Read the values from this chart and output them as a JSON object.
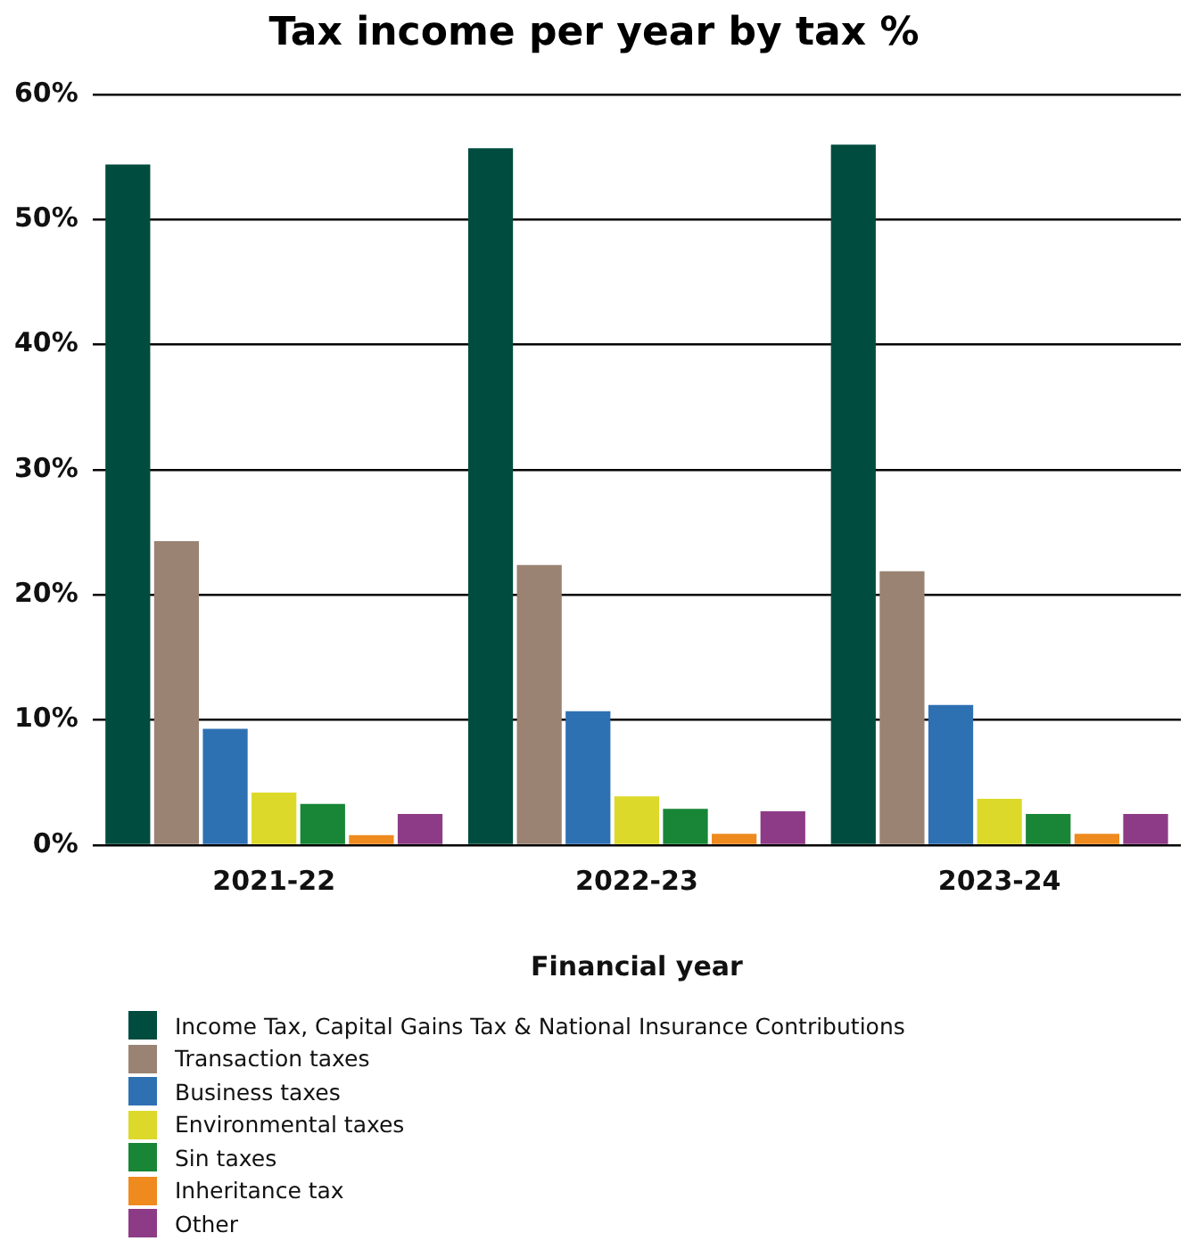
{
  "chart_data": {
    "type": "bar",
    "title": "Tax income per year by tax %",
    "xlabel": "Financial year",
    "categories": [
      "2021-22",
      "2022-23",
      "2023-24"
    ],
    "series": [
      {
        "name": "Income Tax, Capital Gains Tax & National Insurance Contributions",
        "color": "#004c3f",
        "values": [
          54.4,
          55.7,
          56.0
        ]
      },
      {
        "name": "Transaction taxes",
        "color": "#9a8373",
        "values": [
          24.3,
          22.4,
          21.9
        ]
      },
      {
        "name": "Business taxes",
        "color": "#2e71b3",
        "values": [
          9.3,
          10.7,
          11.2
        ]
      },
      {
        "name": "Environmental taxes",
        "color": "#dcd92a",
        "values": [
          4.2,
          3.9,
          3.7
        ]
      },
      {
        "name": "Sin taxes",
        "color": "#188636",
        "values": [
          3.3,
          2.9,
          2.5
        ]
      },
      {
        "name": "Inheritance tax",
        "color": "#ef8a1e",
        "values": [
          0.8,
          0.9,
          0.9
        ]
      },
      {
        "name": "Other",
        "color": "#8d3b87",
        "values": [
          2.5,
          2.7,
          2.5
        ]
      }
    ],
    "ylim": [
      0,
      60
    ],
    "yticks": [
      {
        "value": 0,
        "label": "0%"
      },
      {
        "value": 10,
        "label": "10%"
      },
      {
        "value": 20,
        "label": "20%"
      },
      {
        "value": 30,
        "label": "30%"
      },
      {
        "value": 40,
        "label": "40%"
      },
      {
        "value": 50,
        "label": "50%"
      },
      {
        "value": 60,
        "label": "60%"
      }
    ],
    "grid": "y",
    "legend": "bottom"
  }
}
